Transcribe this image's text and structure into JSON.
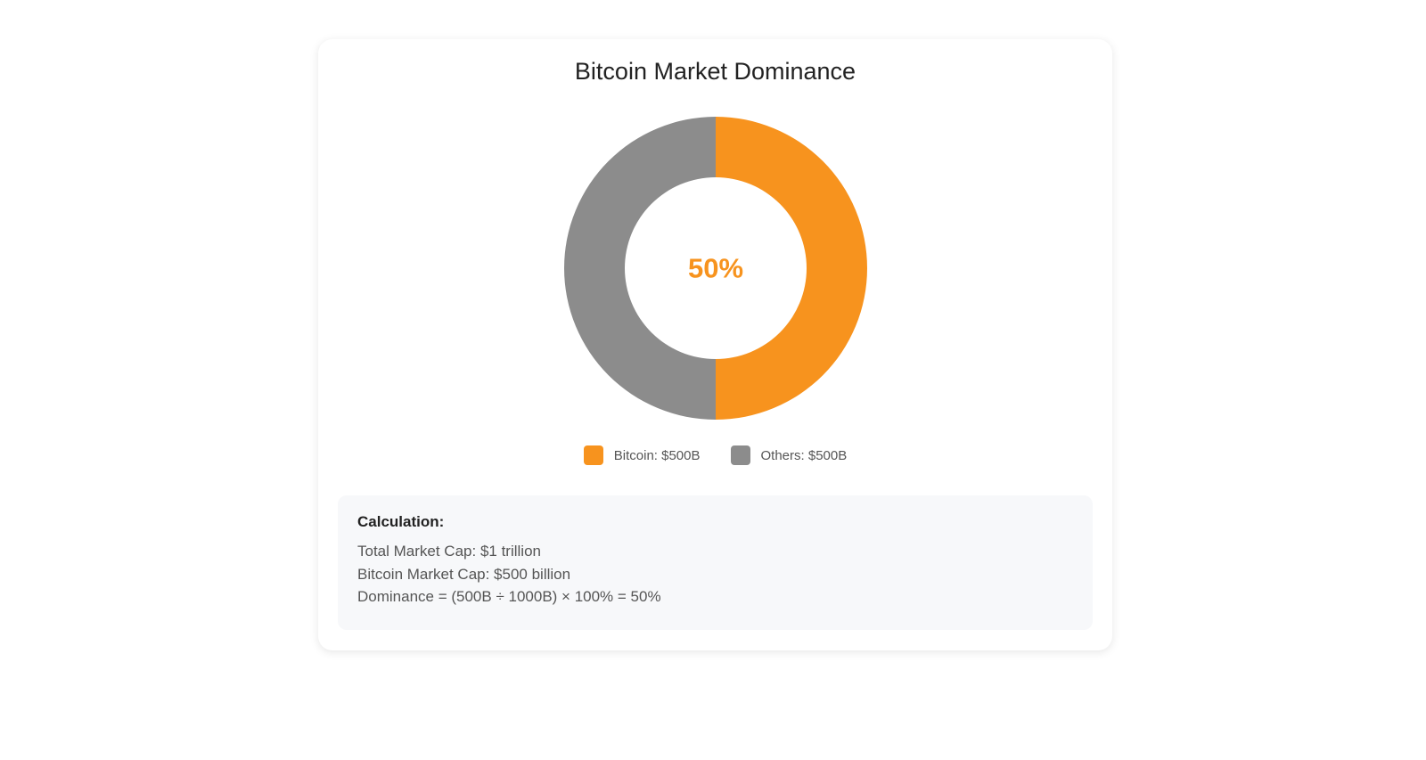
{
  "chart_data": {
    "type": "pie",
    "title": "Bitcoin Market Dominance",
    "center_label": "50%",
    "slices": [
      {
        "name": "Bitcoin",
        "value": 500,
        "label": "Bitcoin: $500B",
        "color": "#f7931e"
      },
      {
        "name": "Others",
        "value": 500,
        "label": "Others: $500B",
        "color": "#8c8c8c"
      }
    ],
    "legend_placement": "bottom"
  },
  "calculation": {
    "title": "Calculation:",
    "lines": [
      "Total Market Cap: $1 trillion",
      "Bitcoin Market Cap: $500 billion",
      "Dominance = (500B ÷ 1000B) × 100% = 50%"
    ]
  },
  "colors": {
    "accent": "#f7931e",
    "others": "#8c8c8c"
  }
}
